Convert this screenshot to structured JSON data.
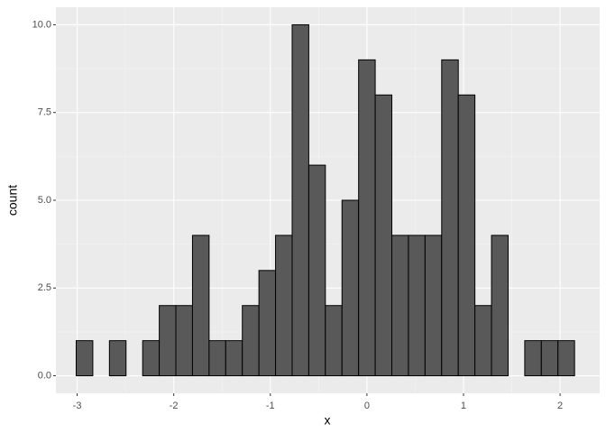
{
  "chart_data": {
    "type": "histogram",
    "x_label": "x",
    "y_label": "count",
    "bins": [
      -3.01,
      -2.838,
      -2.666,
      -2.494,
      -2.322,
      -2.15,
      -1.978,
      -1.806,
      -1.634,
      -1.462,
      -1.29,
      -1.118,
      -0.946,
      -0.774,
      -0.602,
      -0.43,
      -0.258,
      -0.086,
      0.086,
      0.258,
      0.43,
      0.602,
      0.774,
      0.946,
      1.118,
      1.29,
      1.462,
      1.634,
      1.806,
      1.978,
      2.15
    ],
    "values": [
      1,
      0,
      1,
      0,
      1,
      2,
      2,
      4,
      1,
      1,
      2,
      3,
      4,
      10,
      6,
      2,
      5,
      9,
      8,
      4,
      4,
      4,
      9,
      8,
      2,
      4,
      0,
      1,
      1,
      1
    ],
    "color": "#595959",
    "edgecolor": "#000000",
    "xlim": [
      -3.22,
      2.41
    ],
    "ylim": [
      -0.5,
      10.5
    ],
    "xticks": [
      -3,
      -2,
      -1,
      0,
      1,
      2
    ],
    "yticks": [
      {
        "value": 0,
        "label": "0.0"
      },
      {
        "value": 2.5,
        "label": "2.5"
      },
      {
        "value": 5,
        "label": "5.0"
      },
      {
        "value": 7.5,
        "label": "7.5"
      },
      {
        "value": 10,
        "label": "10.0"
      }
    ],
    "grid": true
  }
}
